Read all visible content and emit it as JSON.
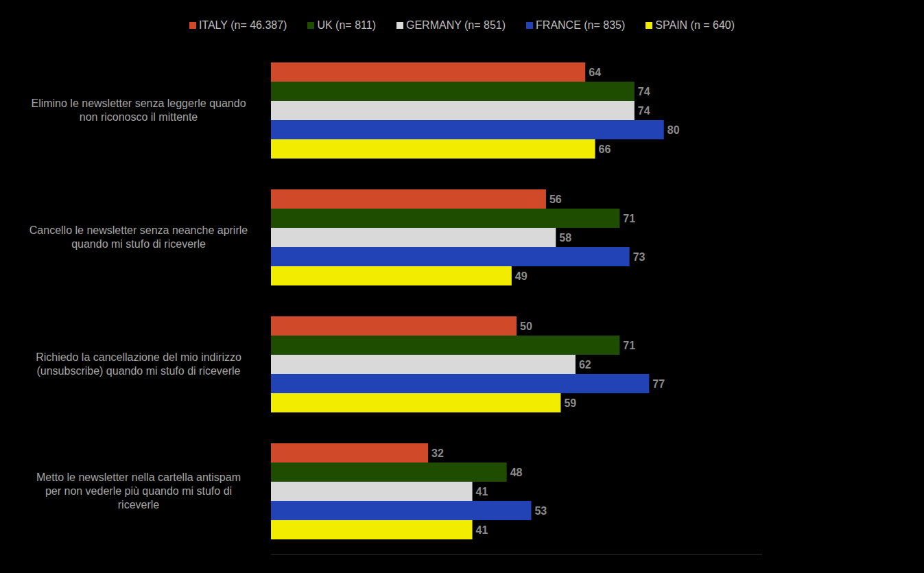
{
  "chart_data": {
    "type": "bar",
    "orientation": "horizontal",
    "data_labels": true,
    "tick_labels": "y",
    "legend": "top",
    "xlim": [
      0,
      100
    ],
    "categories": [
      "Elimino le newsletter senza leggerle quando non riconosco il mittente",
      "Cancello le newsletter senza neanche aprirle quando mi stufo di riceverle",
      "Richiedo la cancellazione del mio indirizzo (unsubscribe) quando mi stufo di riceverle",
      "Metto le newsletter nella cartella antispam per non vederle più quando mi stufo di riceverle"
    ],
    "series": [
      {
        "name": "ITALY (n= 46.387)",
        "color": "#d04a2a",
        "values": [
          64,
          56,
          50,
          32
        ]
      },
      {
        "name": "UK (n= 811)",
        "color": "#1f4d00",
        "values": [
          74,
          71,
          71,
          48
        ]
      },
      {
        "name": "GERMANY (n= 851)",
        "color": "#d9d9d9",
        "values": [
          74,
          58,
          62,
          41
        ]
      },
      {
        "name": "FRANCE (n= 835)",
        "color": "#2143b5",
        "values": [
          80,
          73,
          77,
          53
        ]
      },
      {
        "name": "SPAIN (n = 640)",
        "color": "#f2ec00",
        "values": [
          66,
          49,
          59,
          41
        ]
      }
    ]
  }
}
